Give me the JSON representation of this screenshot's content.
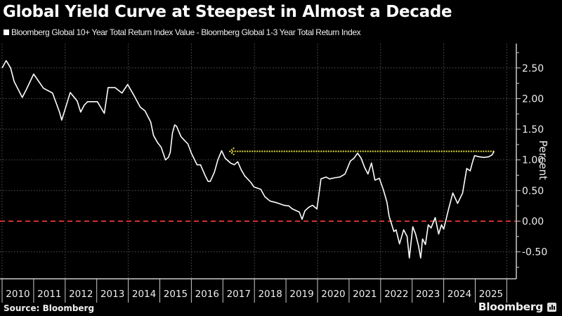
{
  "header": {
    "title": "Global Yield Curve at Steepest in Almost a Decade",
    "legend_label": "Bloomberg Global 10+ Year Total Return Index Value - Bloomberg Global 1-3 Year Total Return Index"
  },
  "footer": {
    "source": "Source: Bloomberg",
    "brand": "Bloomberg"
  },
  "colors": {
    "background": "#000000",
    "series": "#ffffff",
    "zero_line": "#d0312d",
    "reference_arrow": "#e8e23a",
    "grid": "#555555",
    "axis": "#cccccc"
  },
  "chart_data": {
    "type": "line",
    "title": "Global Yield Curve at Steepest in Almost a Decade",
    "xlabel": "",
    "ylabel": "Percent",
    "ylim": [
      -0.95,
      2.9
    ],
    "xlim": [
      2010.0,
      2026.0
    ],
    "y_ticks": [
      "2.50",
      "2.00",
      "1.50",
      "1.00",
      "0.50",
      "0.00",
      "-0.50"
    ],
    "y_tick_values": [
      2.5,
      2.0,
      1.5,
      1.0,
      0.5,
      0.0,
      -0.5
    ],
    "x_ticks": [
      "2010",
      "2011",
      "2012",
      "2013",
      "2014",
      "2015",
      "2016",
      "2017",
      "2018",
      "2019",
      "2020",
      "2021",
      "2022",
      "2023",
      "2024",
      "2025"
    ],
    "grid": true,
    "legend_position": "top-left",
    "series": [
      {
        "name": "Bloomberg Global 10+ Year Total Return Index Value - Bloomberg Global 1-3 Year Total Return Index",
        "x": [
          2010.0,
          2010.13,
          2010.27,
          2010.38,
          2010.64,
          2010.78,
          2011.0,
          2011.31,
          2011.6,
          2011.82,
          2011.89,
          2012.16,
          2012.38,
          2012.49,
          2012.6,
          2012.71,
          2013.02,
          2013.24,
          2013.36,
          2013.58,
          2013.8,
          2013.98,
          2014.16,
          2014.38,
          2014.53,
          2014.71,
          2014.8,
          2014.93,
          2015.04,
          2015.18,
          2015.27,
          2015.33,
          2015.4,
          2015.47,
          2015.53,
          2015.67,
          2015.78,
          2015.89,
          2016.0,
          2016.18,
          2016.29,
          2016.44,
          2016.53,
          2016.6,
          2016.73,
          2016.84,
          2016.96,
          2017.07,
          2017.24,
          2017.36,
          2017.47,
          2017.58,
          2017.69,
          2017.89,
          2017.98,
          2018.2,
          2018.33,
          2018.49,
          2018.71,
          2018.93,
          2019.09,
          2019.2,
          2019.42,
          2019.51,
          2019.6,
          2019.73,
          2019.84,
          2019.98,
          2020.04,
          2020.11,
          2020.27,
          2020.38,
          2020.56,
          2020.71,
          2020.87,
          2021.04,
          2021.16,
          2021.27,
          2021.38,
          2021.49,
          2021.6,
          2021.71,
          2021.82,
          2021.96,
          2022.09,
          2022.2,
          2022.27,
          2022.42,
          2022.49,
          2022.6,
          2022.73,
          2022.84,
          2022.91,
          2023.02,
          2023.11,
          2023.2,
          2023.27,
          2023.33,
          2023.42,
          2023.51,
          2023.6,
          2023.73,
          2023.84,
          2023.93,
          2024.0,
          2024.16,
          2024.29,
          2024.44,
          2024.6,
          2024.73,
          2024.84,
          2024.91,
          2024.98,
          2025.13,
          2025.27,
          2025.42,
          2025.53,
          2025.6
        ],
        "values": [
          2.5,
          2.62,
          2.5,
          2.28,
          2.02,
          2.16,
          2.4,
          2.17,
          2.09,
          1.78,
          1.65,
          2.1,
          1.96,
          1.78,
          1.89,
          1.95,
          1.95,
          1.76,
          2.18,
          2.18,
          2.09,
          2.23,
          2.07,
          1.86,
          1.8,
          1.62,
          1.4,
          1.28,
          1.21,
          1.0,
          1.04,
          1.12,
          1.44,
          1.57,
          1.55,
          1.38,
          1.32,
          1.26,
          1.11,
          0.92,
          0.92,
          0.74,
          0.65,
          0.65,
          0.8,
          1.0,
          1.15,
          1.03,
          0.95,
          0.92,
          0.97,
          0.84,
          0.74,
          0.63,
          0.56,
          0.52,
          0.4,
          0.33,
          0.3,
          0.26,
          0.25,
          0.2,
          0.15,
          0.03,
          0.17,
          0.23,
          0.26,
          0.2,
          0.42,
          0.69,
          0.72,
          0.69,
          0.71,
          0.72,
          0.77,
          0.98,
          1.03,
          1.11,
          1.03,
          0.88,
          0.77,
          0.95,
          0.67,
          0.7,
          0.51,
          0.31,
          0.08,
          -0.17,
          -0.14,
          -0.37,
          -0.14,
          -0.25,
          -0.6,
          -0.09,
          -0.21,
          -0.4,
          -0.6,
          -0.29,
          -0.38,
          -0.06,
          -0.11,
          0.06,
          -0.21,
          -0.06,
          -0.13,
          0.21,
          0.46,
          0.29,
          0.46,
          0.86,
          0.82,
          0.96,
          1.07,
          1.05,
          1.04,
          1.05,
          1.08,
          1.14
        ]
      }
    ],
    "annotations": [
      {
        "type": "reference_line",
        "value": 0.0,
        "style": "dashed",
        "color": "#d0312d"
      },
      {
        "type": "arrow",
        "value": 1.14,
        "from_x": 2025.6,
        "to_x": 2017.2,
        "style": "dotted",
        "color": "#e8e23a",
        "direction": "left",
        "meaning": "current level last reached in early 2017"
      }
    ]
  }
}
